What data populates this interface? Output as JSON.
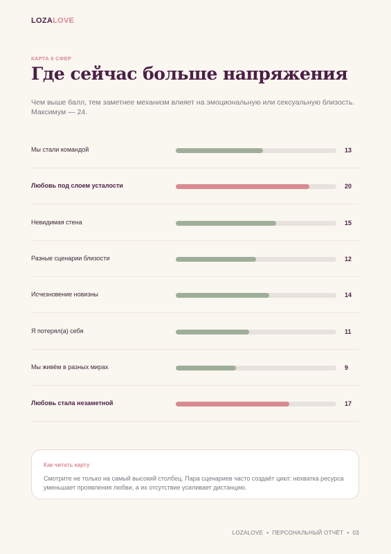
{
  "brand": {
    "part1": "LOZA",
    "part2": "LOVE"
  },
  "eyebrow": "КАРТА 8 СФЕР",
  "title": "Где сейчас больше напряжения",
  "subtitle": "Чем выше балл, тем заметнее механизм влияет на эмоциональную или сексуальную близость. Максимум — 24.",
  "chart_data": {
    "type": "hbar",
    "categories": [
      "Мы стали командой",
      "Любовь под слоем усталости",
      "Невидимая стена",
      "Разные сценарии близости",
      "Исчезновение новизны",
      "Я потерял(а) себя",
      "Мы живём в разных мирах",
      "Любовь стала незаметной"
    ],
    "values": [
      13,
      20,
      15,
      12,
      14,
      11,
      9,
      17
    ],
    "highlight": [
      false,
      true,
      false,
      false,
      false,
      false,
      false,
      true
    ],
    "color": "#9fae98",
    "highlight_color": "#d98a92",
    "xlim": [
      0,
      24
    ]
  },
  "note": {
    "title": "Как читать карту",
    "text": "Смотрите не только на самый высокий столбец. Пара сценариев часто создаёт цикл: нехватка ресурса уменьшает проявления любви, а их отсутствие усиливает дистанцию."
  },
  "footer": {
    "brand": "LOZALOVE",
    "label": "ПЕРСОНАЛЬНЫЙ ОТЧЁТ",
    "page": "03"
  }
}
